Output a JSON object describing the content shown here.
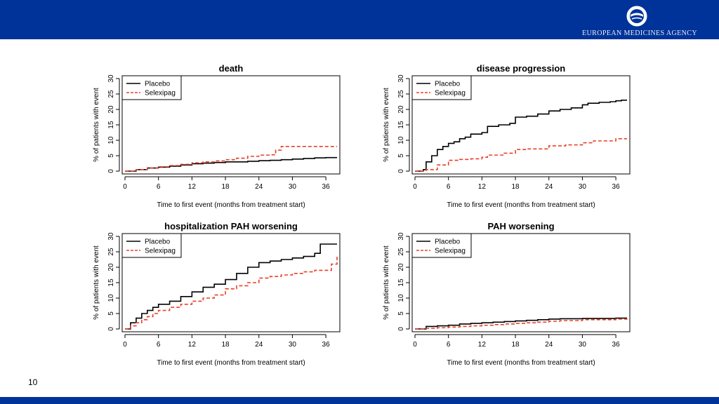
{
  "header": {
    "agency_name": "EUROPEAN MEDICINES AGENCY",
    "brand_color": "#003399"
  },
  "footer": {
    "page_number": "10"
  },
  "chart_data": [
    {
      "type": "line",
      "title": "death",
      "xlabel": "Time to first event (months from treatment start)",
      "ylabel": "% of patients with event",
      "xlim": [
        0,
        38
      ],
      "ylim": [
        0,
        30
      ],
      "xticks": [
        0,
        6,
        12,
        18,
        24,
        30,
        36
      ],
      "yticks": [
        0,
        5,
        10,
        15,
        20,
        25,
        30
      ],
      "legend": "top-left",
      "series": [
        {
          "name": "Placebo",
          "color": "#000000",
          "dash": "solid",
          "x": [
            0,
            2,
            4,
            6,
            8,
            10,
            12,
            14,
            16,
            18,
            22,
            24,
            26,
            28,
            30,
            32,
            34,
            36,
            38
          ],
          "y": [
            0,
            0.5,
            1.0,
            1.3,
            1.6,
            2.0,
            2.4,
            2.6,
            2.8,
            3.0,
            3.2,
            3.4,
            3.5,
            3.7,
            3.9,
            4.1,
            4.3,
            4.4,
            4.4
          ]
        },
        {
          "name": "Selexipag",
          "color": "#e8402a",
          "dash": "dashed",
          "x": [
            0,
            2,
            4,
            6,
            8,
            10,
            12,
            14,
            16,
            18,
            20,
            22,
            24,
            26,
            27,
            28,
            30,
            36,
            38
          ],
          "y": [
            0,
            0.5,
            1.0,
            1.4,
            1.8,
            2.2,
            2.7,
            3.0,
            3.3,
            3.7,
            4.2,
            4.8,
            5.2,
            5.3,
            6.8,
            8.0,
            8.0,
            8.0,
            8.0
          ]
        }
      ]
    },
    {
      "type": "line",
      "title": "disease progression",
      "xlabel": "Time to first event (months from treatment start)",
      "ylabel": "% of patients with event",
      "xlim": [
        0,
        38
      ],
      "ylim": [
        0,
        30
      ],
      "xticks": [
        0,
        6,
        12,
        18,
        24,
        30,
        36
      ],
      "yticks": [
        0,
        5,
        10,
        15,
        20,
        25,
        30
      ],
      "legend": "top-left",
      "series": [
        {
          "name": "Placebo",
          "color": "#000000",
          "dash": "solid",
          "x": [
            0,
            1.5,
            2,
            3,
            4,
            5,
            6,
            7,
            8,
            9,
            10,
            12,
            13,
            15,
            17,
            18,
            20,
            22,
            24,
            26,
            28,
            30,
            31,
            33,
            35,
            36,
            37,
            38
          ],
          "y": [
            0,
            0.5,
            3.0,
            5.0,
            7.0,
            8.0,
            9.0,
            9.5,
            10.5,
            11.0,
            12.0,
            12.5,
            14.5,
            15.0,
            15.5,
            17.5,
            17.8,
            18.5,
            19.5,
            20.0,
            20.5,
            21.5,
            22.0,
            22.3,
            22.5,
            22.8,
            23.0,
            23.0
          ]
        },
        {
          "name": "Selexipag",
          "color": "#e8402a",
          "dash": "dashed",
          "x": [
            0,
            2,
            4,
            6,
            8,
            10,
            12,
            13,
            16,
            18,
            20,
            24,
            27,
            30,
            32,
            36,
            38
          ],
          "y": [
            0,
            0.5,
            2.0,
            3.5,
            3.8,
            4.0,
            4.5,
            5.2,
            5.8,
            7.0,
            7.2,
            8.2,
            8.5,
            9.2,
            9.8,
            10.5,
            10.5
          ]
        }
      ]
    },
    {
      "type": "line",
      "title": "hospitalization PAH worsening",
      "xlabel": "Time to first event (months from treatment start)",
      "ylabel": "% of patients with event",
      "xlim": [
        0,
        38
      ],
      "ylim": [
        0,
        30
      ],
      "xticks": [
        0,
        6,
        12,
        18,
        24,
        30,
        36
      ],
      "yticks": [
        0,
        5,
        10,
        15,
        20,
        25,
        30
      ],
      "legend": "top-left",
      "series": [
        {
          "name": "Placebo",
          "color": "#000000",
          "dash": "solid",
          "x": [
            0,
            1,
            2,
            3,
            4,
            5,
            6,
            8,
            10,
            12,
            14,
            16,
            18,
            20,
            22,
            24,
            26,
            28,
            30,
            32,
            34,
            35,
            36,
            38
          ],
          "y": [
            0,
            2.0,
            3.5,
            5.0,
            6.0,
            7.0,
            8.0,
            9.0,
            10.5,
            12.0,
            13.5,
            14.5,
            16.0,
            18.0,
            20.0,
            21.5,
            22.0,
            22.5,
            23.0,
            23.5,
            24.5,
            27.5,
            27.5,
            27.5
          ]
        },
        {
          "name": "Selexipag",
          "color": "#e8402a",
          "dash": "dashed",
          "x": [
            0,
            1,
            2,
            3,
            4,
            5,
            6,
            8,
            10,
            12,
            14,
            16,
            18,
            20,
            22,
            24,
            26,
            28,
            30,
            32,
            34,
            36,
            37,
            38
          ],
          "y": [
            0,
            1.0,
            2.0,
            3.0,
            4.0,
            5.0,
            6.0,
            7.0,
            8.0,
            9.0,
            10.0,
            11.0,
            13.0,
            14.0,
            15.0,
            16.5,
            17.0,
            17.5,
            18.0,
            18.5,
            19.0,
            19.0,
            21.0,
            23.5
          ]
        }
      ]
    },
    {
      "type": "line",
      "title": "PAH worsening",
      "xlabel": "Time to first event (months from treatment start)",
      "ylabel": "% of patients with event",
      "xlim": [
        0,
        38
      ],
      "ylim": [
        0,
        30
      ],
      "xticks": [
        0,
        6,
        12,
        18,
        24,
        30,
        36
      ],
      "yticks": [
        0,
        5,
        10,
        15,
        20,
        25,
        30
      ],
      "legend": "top-left",
      "series": [
        {
          "name": "Placebo",
          "color": "#000000",
          "dash": "solid",
          "x": [
            0,
            2,
            4,
            6,
            8,
            10,
            12,
            14,
            16,
            18,
            20,
            22,
            24,
            26,
            30,
            36,
            38
          ],
          "y": [
            0,
            0.8,
            1.0,
            1.2,
            1.6,
            1.8,
            2.0,
            2.2,
            2.4,
            2.6,
            2.8,
            3.0,
            3.2,
            3.3,
            3.4,
            3.5,
            3.5
          ]
        },
        {
          "name": "Selexipag",
          "color": "#e8402a",
          "dash": "dashed",
          "x": [
            0,
            2,
            4,
            6,
            8,
            10,
            12,
            14,
            16,
            18,
            20,
            22,
            24,
            26,
            30,
            36,
            38
          ],
          "y": [
            0,
            0.2,
            0.4,
            0.6,
            0.8,
            1.0,
            1.2,
            1.4,
            1.6,
            1.8,
            2.0,
            2.2,
            2.5,
            2.7,
            3.0,
            3.2,
            3.3
          ]
        }
      ]
    }
  ]
}
